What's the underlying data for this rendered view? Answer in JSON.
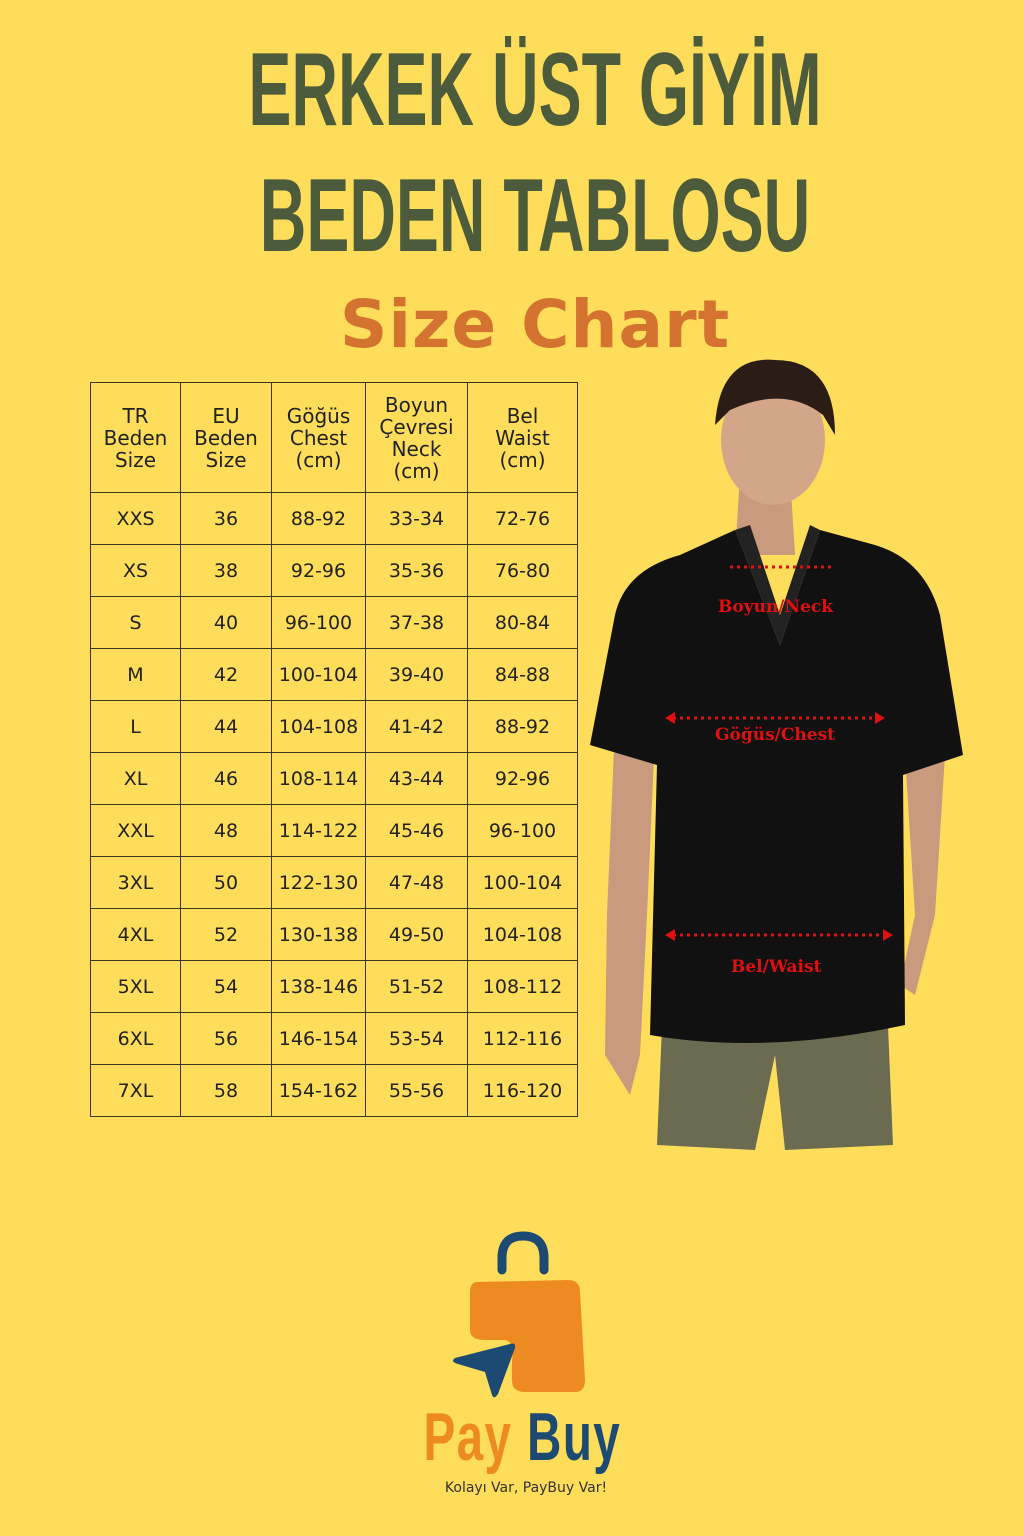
{
  "title": {
    "line1": "ERKEK ÜST GİYİM",
    "line2": "BEDEN TABLOSU",
    "line3": "Size Chart"
  },
  "colors": {
    "background": "#fedd5a",
    "title": "#4b5b3c",
    "subtitle": "#d3732f",
    "measure": "#e01010",
    "brand_orange": "#ee8a22",
    "brand_blue": "#1d4a73"
  },
  "table": {
    "headers": [
      [
        "TR",
        "Beden",
        "Size"
      ],
      [
        "EU",
        "Beden",
        "Size"
      ],
      [
        "Göğüs",
        "Chest",
        "(cm)"
      ],
      [
        "Boyun",
        "Çevresi",
        "Neck",
        "(cm)"
      ],
      [
        "Bel",
        "Waist",
        "(cm)"
      ]
    ],
    "rows": [
      [
        "XXS",
        "36",
        "88-92",
        "33-34",
        "72-76"
      ],
      [
        "XS",
        "38",
        "92-96",
        "35-36",
        "76-80"
      ],
      [
        "S",
        "40",
        "96-100",
        "37-38",
        "80-84"
      ],
      [
        "M",
        "42",
        "100-104",
        "39-40",
        "84-88"
      ],
      [
        "L",
        "44",
        "104-108",
        "41-42",
        "88-92"
      ],
      [
        "XL",
        "46",
        "108-114",
        "43-44",
        "92-96"
      ],
      [
        "XXL",
        "48",
        "114-122",
        "45-46",
        "96-100"
      ],
      [
        "3XL",
        "50",
        "122-130",
        "47-48",
        "100-104"
      ],
      [
        "4XL",
        "52",
        "130-138",
        "49-50",
        "104-108"
      ],
      [
        "5XL",
        "54",
        "138-146",
        "51-52",
        "108-112"
      ],
      [
        "6XL",
        "56",
        "146-154",
        "53-54",
        "112-116"
      ],
      [
        "7XL",
        "58",
        "154-162",
        "55-56",
        "116-120"
      ]
    ]
  },
  "model": {
    "neck_label": "Boyun/Neck",
    "chest_label": "Göğüs/Chest",
    "waist_label": "Bel/Waist"
  },
  "brand": {
    "pay": "Pay",
    "buy": "Buy",
    "tagline": "Kolayı Var, PayBuy Var!"
  }
}
